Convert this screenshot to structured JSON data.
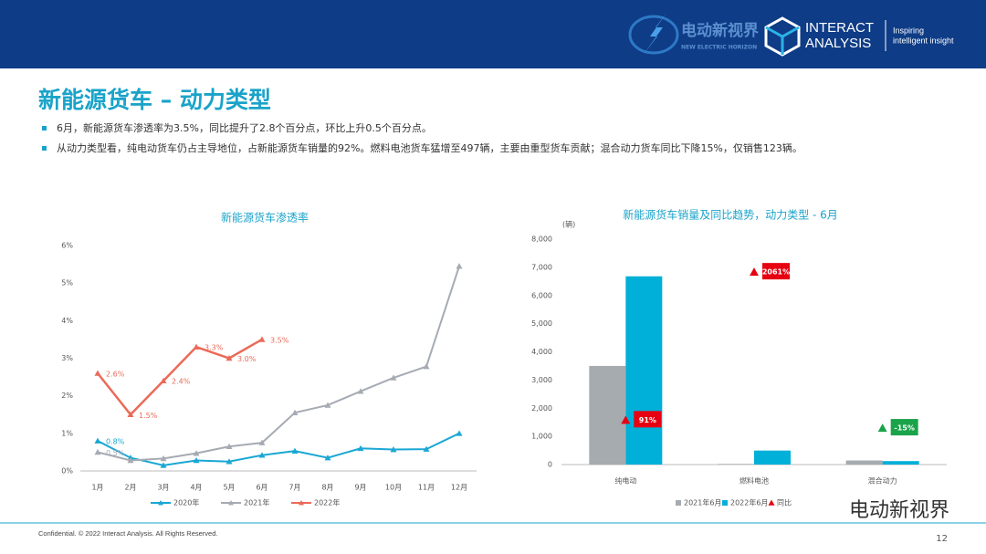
{
  "header": {
    "logo_cn": "电动新视界",
    "logo_en": "NEW ELECTRIC HORIZON",
    "brand": [
      "INTERACT",
      "ANALYSIS"
    ],
    "tagline": [
      "Inspiring",
      "intelligent insight"
    ]
  },
  "title": "新能源货车 – 动力类型",
  "bullets": [
    "6月，新能源货车渗透率为3.5%，同比提升了2.8个百分点，环比上升0.5个百分点。",
    "从动力类型看，纯电动货车仍占主导地位，占新能源货车销量的92%。燃料电池货车猛增至497辆，主要由重型货车贡献；混合动力货车同比下降15%，仅销售123辆。"
  ],
  "chart_data": [
    {
      "type": "line",
      "title": "新能源货车渗透率",
      "categories": [
        "1月",
        "2月",
        "3月",
        "4月",
        "5月",
        "6月",
        "7月",
        "8月",
        "9月",
        "10月",
        "11月",
        "12月"
      ],
      "ylim": [
        0,
        6
      ],
      "yticks": [
        {
          "value": 0,
          "label": "0%"
        },
        {
          "value": 1,
          "label": "1%"
        },
        {
          "value": 2,
          "label": "2%"
        },
        {
          "value": 3,
          "label": "3%"
        },
        {
          "value": 4,
          "label": "4%"
        },
        {
          "value": 5,
          "label": "5%"
        },
        {
          "value": 6,
          "label": "6%"
        }
      ],
      "grid": false,
      "legend": "bottom",
      "series": [
        {
          "name": "2020年",
          "color": "#1aa7d4",
          "values": [
            0.8,
            0.35,
            0.15,
            0.28,
            0.25,
            0.42,
            0.53,
            0.35,
            0.6,
            0.57,
            0.58,
            1.0
          ],
          "value_labels": [
            "0.8%",
            null,
            null,
            null,
            null,
            null,
            null,
            null,
            null,
            null,
            null,
            null
          ]
        },
        {
          "name": "2021年",
          "color": "#a6abb3",
          "values": [
            0.5,
            0.28,
            0.33,
            0.47,
            0.65,
            0.75,
            1.55,
            1.75,
            2.12,
            2.48,
            2.78,
            5.45
          ],
          "value_labels": [
            "0.5%",
            null,
            null,
            null,
            null,
            null,
            null,
            null,
            null,
            null,
            null,
            null
          ]
        },
        {
          "name": "2022年",
          "color": "#eb6a58",
          "values": [
            2.6,
            1.5,
            2.4,
            3.3,
            3.0,
            3.5,
            null,
            null,
            null,
            null,
            null,
            null
          ],
          "value_labels": [
            "2.6%",
            "1.5%",
            "2.4%",
            "3.3%",
            "3.0%",
            "3.5%",
            null,
            null,
            null,
            null,
            null,
            null
          ]
        }
      ]
    },
    {
      "type": "bar",
      "title": "新能源货车销量及同比趋势，动力类型 - 6月",
      "y_label": "(辆)",
      "categories": [
        "纯电动",
        "燃料电池",
        "混合动力"
      ],
      "ylim": [
        0,
        8000
      ],
      "yticks": [
        0,
        {
          "value": 1000,
          "label": "1,000"
        },
        {
          "value": 2000,
          "label": "2,000"
        },
        {
          "value": 3000,
          "label": "3,000"
        },
        {
          "value": 4000,
          "label": "4,000"
        },
        {
          "value": 5000,
          "label": "5,000"
        },
        {
          "value": 6000,
          "label": "6,000"
        },
        {
          "value": 7000,
          "label": "7,000"
        },
        {
          "value": 8000,
          "label": "8,000"
        }
      ],
      "y2lim": [
        -500,
        2500
      ],
      "grid": false,
      "legend": "bottom",
      "series": [
        {
          "name": "2021年6月",
          "color": "#a6abb0",
          "values": [
            3500,
            23,
            145
          ]
        },
        {
          "name": "2022年6月",
          "color": "#00b0d8",
          "values": [
            6680,
            497,
            123
          ]
        },
        {
          "name": "同比",
          "color": "#e60012",
          "negative_color": "#1aa34a",
          "axis": "y2",
          "values": [
            91,
            2061,
            -15
          ],
          "value_labels": [
            "91%",
            "2061%",
            "-15%"
          ]
        }
      ]
    }
  ],
  "footer": {
    "copyright": "Confidential. © 2022 Interact Analysis. All Rights Reserved.",
    "page": 12,
    "watermark": "电动新视界"
  }
}
